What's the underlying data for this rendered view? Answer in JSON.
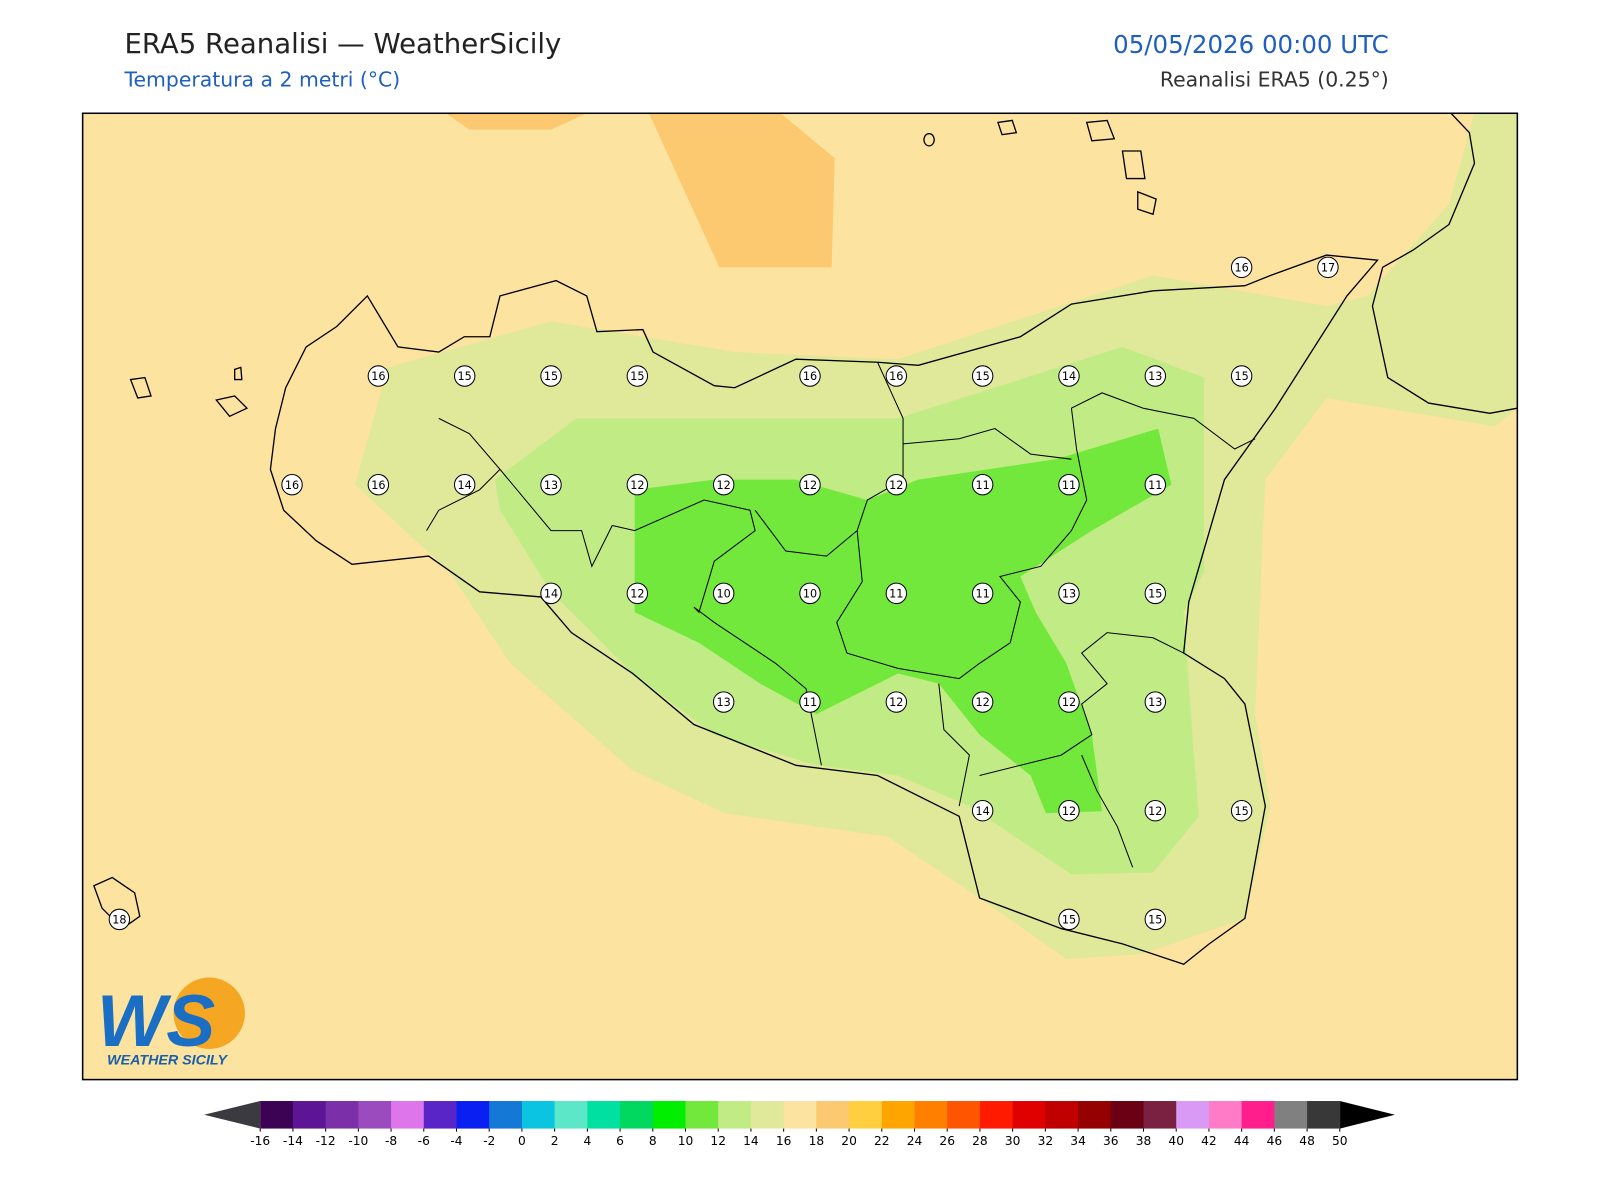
{
  "header": {
    "title": "ERA5 Reanalisi — WeatherSicily",
    "subtitle": "Temperatura a 2 metri (°C)",
    "datetime": "05/05/2026 00:00 UTC",
    "source": "Reanalisi ERA5 (0.25°)"
  },
  "stations": [
    16,
    17,
    16,
    15,
    15,
    15,
    16,
    16,
    15,
    14,
    13,
    15,
    16,
    16,
    14,
    13,
    12,
    12,
    12,
    12,
    11,
    11,
    11,
    14,
    12,
    10,
    10,
    11,
    11,
    13,
    15,
    13,
    11,
    12,
    12,
    12,
    13,
    14,
    12,
    12,
    15,
    18,
    15,
    15
  ],
  "colorbar": {
    "ticks": [
      -16,
      -14,
      -12,
      -10,
      -8,
      -6,
      -4,
      -2,
      0,
      2,
      4,
      6,
      8,
      10,
      12,
      14,
      16,
      18,
      20,
      22,
      24,
      26,
      28,
      30,
      32,
      34,
      36,
      38,
      40,
      42,
      44,
      46,
      48,
      50
    ],
    "colors": [
      "#3c0355",
      "#5d1596",
      "#7b2fa8",
      "#9b4bbd",
      "#de75ea",
      "#5a25c7",
      "#0a1ff2",
      "#1478d6",
      "#0ac4e0",
      "#5ce8c8",
      "#00e0a0",
      "#00d860",
      "#00ee00",
      "#73e83c",
      "#c1ec85",
      "#e0e89a",
      "#fde3a0",
      "#fcc870",
      "#ffcf40",
      "#ffa500",
      "#ff8000",
      "#ff5500",
      "#ff1a00",
      "#e00000",
      "#c00000",
      "#950000",
      "#6b0015",
      "#7a2040",
      "#d89af5",
      "#ff7bc8",
      "#ff1e8c",
      "#808080",
      "#383838"
    ],
    "under_color": "#3a3a40",
    "over_color": "#000000"
  },
  "logo": {
    "mark": "WS",
    "text": "WEATHER SICILY"
  }
}
